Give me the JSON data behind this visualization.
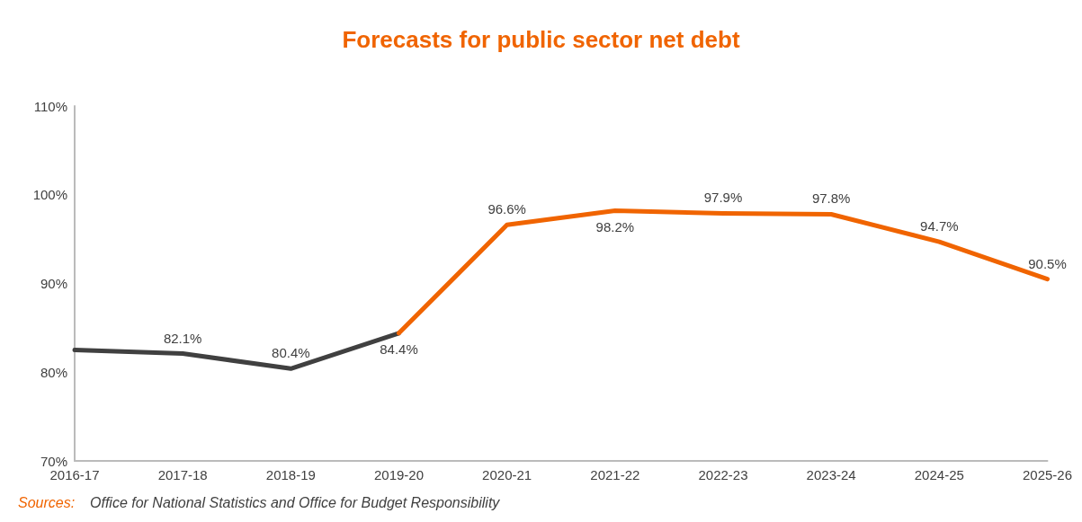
{
  "chart_data": {
    "type": "line",
    "title": "Forecasts for public sector net debt",
    "categories": [
      "2016-17",
      "2017-18",
      "2018-19",
      "2019-20",
      "2020-21",
      "2021-22",
      "2022-23",
      "2023-24",
      "2024-25",
      "2025-26"
    ],
    "series": [
      {
        "color": "#404040",
        "values": [
          82.5,
          82.1,
          80.4,
          84.4,
          null,
          null,
          null,
          null,
          null,
          null
        ],
        "value_labels": [
          null,
          "82.1%",
          "80.4%",
          null,
          null,
          null,
          null,
          null,
          null,
          null
        ]
      },
      {
        "color": "#f06400",
        "values": [
          null,
          null,
          null,
          84.4,
          96.6,
          98.2,
          97.9,
          97.8,
          94.7,
          90.5
        ],
        "value_labels": [
          null,
          null,
          null,
          "84.4%",
          "96.6%",
          "98.2%",
          "97.9%",
          "97.8%",
          "94.7%",
          "90.5%"
        ]
      }
    ],
    "ylim": [
      70,
      110
    ],
    "yticks": [
      {
        "value": 70,
        "label": "70%"
      },
      {
        "value": 80,
        "label": "80%"
      },
      {
        "value": 90,
        "label": "90%"
      },
      {
        "value": 100,
        "label": "100%"
      },
      {
        "value": 110,
        "label": "110%"
      }
    ],
    "grid": false,
    "marker": "none",
    "line_style": "solid",
    "annotations": [
      "Sources:",
      "Office for National Statistics and Office for Budget Responsibility"
    ]
  }
}
